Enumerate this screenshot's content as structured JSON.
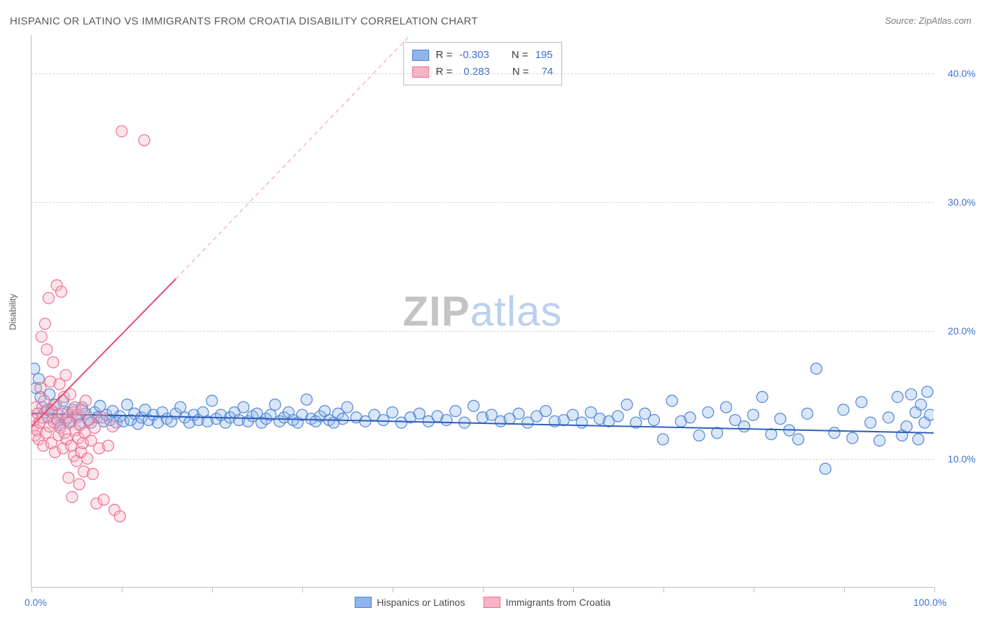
{
  "title": "HISPANIC OR LATINO VS IMMIGRANTS FROM CROATIA DISABILITY CORRELATION CHART",
  "source": "Source: ZipAtlas.com",
  "watermark": {
    "zip": "ZIP",
    "atlas": "atlas"
  },
  "y_axis_title": "Disability",
  "chart": {
    "type": "scatter",
    "xlim": [
      0,
      100
    ],
    "ylim": [
      0,
      43
    ],
    "x_ticks": [
      0,
      10,
      20,
      30,
      40,
      50,
      60,
      70,
      80,
      90,
      100
    ],
    "x_tick_labels": {
      "0": "0.0%",
      "100": "100.0%"
    },
    "y_gridlines": [
      10,
      20,
      30,
      40
    ],
    "y_tick_labels": {
      "10": "10.0%",
      "20": "20.0%",
      "30": "30.0%",
      "40": "40.0%"
    },
    "background_color": "#ffffff",
    "grid_color": "#d4d4d4",
    "axis_color": "#bcbcbc",
    "tick_label_color": "#3b6fd6",
    "marker_radius": 8,
    "marker_stroke_opacity": 0.9,
    "marker_fill_opacity": 0.35,
    "series": [
      {
        "name": "Hispanics or Latinos",
        "color_fill": "#8fb6ec",
        "color_stroke": "#4a7fd6",
        "r_label": "R =",
        "r_value": "-0.303",
        "n_label": "N =",
        "n_value": "195",
        "trend": {
          "x1": 0,
          "y1": 13.5,
          "x2": 100,
          "y2": 12.0,
          "color": "#2a5db8",
          "width": 2
        },
        "points": [
          [
            0.3,
            17.0
          ],
          [
            0.5,
            15.5
          ],
          [
            0.8,
            16.2
          ],
          [
            1.0,
            14.8
          ],
          [
            1.2,
            14.0
          ],
          [
            1.5,
            13.6
          ],
          [
            1.8,
            13.2
          ],
          [
            2.0,
            15.0
          ],
          [
            2.2,
            13.8
          ],
          [
            2.5,
            14.2
          ],
          [
            2.8,
            12.8
          ],
          [
            3.0,
            13.4
          ],
          [
            3.2,
            12.6
          ],
          [
            3.5,
            14.5
          ],
          [
            3.8,
            13.0
          ],
          [
            4.0,
            13.6
          ],
          [
            4.3,
            12.9
          ],
          [
            4.6,
            13.8
          ],
          [
            5.0,
            13.2
          ],
          [
            5.3,
            12.7
          ],
          [
            5.6,
            14.0
          ],
          [
            6.0,
            13.5
          ],
          [
            6.3,
            13.0
          ],
          [
            6.6,
            12.8
          ],
          [
            7.0,
            13.6
          ],
          [
            7.3,
            13.2
          ],
          [
            7.6,
            14.1
          ],
          [
            8.0,
            12.9
          ],
          [
            8.3,
            13.4
          ],
          [
            8.7,
            13.0
          ],
          [
            9.0,
            13.7
          ],
          [
            9.4,
            12.8
          ],
          [
            9.8,
            13.3
          ],
          [
            10.2,
            12.9
          ],
          [
            10.6,
            14.2
          ],
          [
            11.0,
            13.0
          ],
          [
            11.4,
            13.5
          ],
          [
            11.8,
            12.7
          ],
          [
            12.2,
            13.2
          ],
          [
            12.6,
            13.8
          ],
          [
            13.0,
            13.0
          ],
          [
            13.5,
            13.4
          ],
          [
            14.0,
            12.8
          ],
          [
            14.5,
            13.6
          ],
          [
            15.0,
            13.1
          ],
          [
            15.5,
            12.9
          ],
          [
            16.0,
            13.5
          ],
          [
            16.5,
            14.0
          ],
          [
            17.0,
            13.2
          ],
          [
            17.5,
            12.8
          ],
          [
            18.0,
            13.4
          ],
          [
            18.5,
            13.0
          ],
          [
            19.0,
            13.6
          ],
          [
            19.5,
            12.9
          ],
          [
            20.0,
            14.5
          ],
          [
            20.5,
            13.1
          ],
          [
            21.0,
            13.4
          ],
          [
            21.5,
            12.8
          ],
          [
            22.0,
            13.2
          ],
          [
            22.5,
            13.6
          ],
          [
            23.0,
            13.0
          ],
          [
            23.5,
            14.0
          ],
          [
            24.0,
            12.9
          ],
          [
            24.5,
            13.3
          ],
          [
            25.0,
            13.5
          ],
          [
            25.5,
            12.8
          ],
          [
            26.0,
            13.1
          ],
          [
            26.5,
            13.4
          ],
          [
            27.0,
            14.2
          ],
          [
            27.5,
            12.9
          ],
          [
            28.0,
            13.2
          ],
          [
            28.5,
            13.6
          ],
          [
            29.0,
            13.0
          ],
          [
            29.5,
            12.8
          ],
          [
            30.0,
            13.4
          ],
          [
            30.5,
            14.6
          ],
          [
            31.0,
            13.1
          ],
          [
            31.5,
            12.9
          ],
          [
            32.0,
            13.3
          ],
          [
            32.5,
            13.7
          ],
          [
            33.0,
            13.0
          ],
          [
            33.5,
            12.8
          ],
          [
            34.0,
            13.5
          ],
          [
            34.5,
            13.1
          ],
          [
            35.0,
            14.0
          ],
          [
            36.0,
            13.2
          ],
          [
            37.0,
            12.9
          ],
          [
            38.0,
            13.4
          ],
          [
            39.0,
            13.0
          ],
          [
            40.0,
            13.6
          ],
          [
            41.0,
            12.8
          ],
          [
            42.0,
            13.2
          ],
          [
            43.0,
            13.5
          ],
          [
            44.0,
            12.9
          ],
          [
            45.0,
            13.3
          ],
          [
            46.0,
            13.0
          ],
          [
            47.0,
            13.7
          ],
          [
            48.0,
            12.8
          ],
          [
            49.0,
            14.1
          ],
          [
            50.0,
            13.2
          ],
          [
            51.0,
            13.4
          ],
          [
            52.0,
            12.9
          ],
          [
            53.0,
            13.1
          ],
          [
            54.0,
            13.5
          ],
          [
            55.0,
            12.8
          ],
          [
            56.0,
            13.3
          ],
          [
            57.0,
            13.7
          ],
          [
            58.0,
            12.9
          ],
          [
            59.0,
            13.0
          ],
          [
            60.0,
            13.4
          ],
          [
            61.0,
            12.8
          ],
          [
            62.0,
            13.6
          ],
          [
            63.0,
            13.1
          ],
          [
            64.0,
            12.9
          ],
          [
            65.0,
            13.3
          ],
          [
            66.0,
            14.2
          ],
          [
            67.0,
            12.8
          ],
          [
            68.0,
            13.5
          ],
          [
            69.0,
            13.0
          ],
          [
            70.0,
            11.5
          ],
          [
            71.0,
            14.5
          ],
          [
            72.0,
            12.9
          ],
          [
            73.0,
            13.2
          ],
          [
            74.0,
            11.8
          ],
          [
            75.0,
            13.6
          ],
          [
            76.0,
            12.0
          ],
          [
            77.0,
            14.0
          ],
          [
            78.0,
            13.0
          ],
          [
            79.0,
            12.5
          ],
          [
            80.0,
            13.4
          ],
          [
            81.0,
            14.8
          ],
          [
            82.0,
            11.9
          ],
          [
            83.0,
            13.1
          ],
          [
            84.0,
            12.2
          ],
          [
            85.0,
            11.5
          ],
          [
            86.0,
            13.5
          ],
          [
            87.0,
            17.0
          ],
          [
            88.0,
            9.2
          ],
          [
            89.0,
            12.0
          ],
          [
            90.0,
            13.8
          ],
          [
            91.0,
            11.6
          ],
          [
            92.0,
            14.4
          ],
          [
            93.0,
            12.8
          ],
          [
            94.0,
            11.4
          ],
          [
            95.0,
            13.2
          ],
          [
            96.0,
            14.8
          ],
          [
            96.5,
            11.8
          ],
          [
            97.0,
            12.5
          ],
          [
            97.5,
            15.0
          ],
          [
            98.0,
            13.6
          ],
          [
            98.3,
            11.5
          ],
          [
            98.6,
            14.2
          ],
          [
            99.0,
            12.8
          ],
          [
            99.3,
            15.2
          ],
          [
            99.6,
            13.4
          ]
        ]
      },
      {
        "name": "Immigrants from Croatia",
        "color_fill": "#f6b4c4",
        "color_stroke": "#ea6a8f",
        "r_label": "R =",
        "r_value": "0.283",
        "n_label": "N =",
        "n_value": "74",
        "trend_solid": {
          "x1": 0,
          "y1": 12.5,
          "x2": 16,
          "y2": 24.0,
          "color": "#ea4a75",
          "width": 2
        },
        "trend_dashed": {
          "x1": 16,
          "y1": 24.0,
          "x2": 42,
          "y2": 43.0,
          "color": "#f6b4c4",
          "width": 1.5,
          "dash": "6,5"
        },
        "points": [
          [
            0.2,
            12.5
          ],
          [
            0.3,
            13.0
          ],
          [
            0.4,
            11.8
          ],
          [
            0.5,
            14.0
          ],
          [
            0.6,
            12.2
          ],
          [
            0.7,
            13.5
          ],
          [
            0.8,
            11.5
          ],
          [
            0.9,
            12.8
          ],
          [
            1.0,
            15.5
          ],
          [
            1.1,
            19.5
          ],
          [
            1.2,
            13.2
          ],
          [
            1.3,
            11.0
          ],
          [
            1.4,
            14.5
          ],
          [
            1.5,
            20.5
          ],
          [
            1.6,
            12.0
          ],
          [
            1.7,
            18.5
          ],
          [
            1.8,
            13.8
          ],
          [
            1.9,
            22.5
          ],
          [
            2.0,
            12.5
          ],
          [
            2.1,
            16.0
          ],
          [
            2.2,
            11.2
          ],
          [
            2.3,
            13.6
          ],
          [
            2.4,
            17.5
          ],
          [
            2.5,
            12.8
          ],
          [
            2.6,
            10.5
          ],
          [
            2.7,
            14.2
          ],
          [
            2.8,
            23.5
          ],
          [
            2.9,
            13.0
          ],
          [
            3.0,
            11.8
          ],
          [
            3.1,
            15.8
          ],
          [
            3.2,
            12.4
          ],
          [
            3.3,
            23.0
          ],
          [
            3.4,
            13.5
          ],
          [
            3.5,
            10.8
          ],
          [
            3.6,
            14.8
          ],
          [
            3.7,
            12.0
          ],
          [
            3.8,
            16.5
          ],
          [
            3.9,
            11.5
          ],
          [
            4.0,
            13.2
          ],
          [
            4.1,
            8.5
          ],
          [
            4.2,
            12.8
          ],
          [
            4.3,
            15.0
          ],
          [
            4.4,
            11.0
          ],
          [
            4.5,
            7.0
          ],
          [
            4.6,
            13.6
          ],
          [
            4.7,
            10.2
          ],
          [
            4.8,
            14.0
          ],
          [
            4.9,
            12.2
          ],
          [
            5.0,
            9.8
          ],
          [
            5.1,
            13.4
          ],
          [
            5.2,
            11.6
          ],
          [
            5.3,
            8.0
          ],
          [
            5.4,
            12.6
          ],
          [
            5.5,
            10.5
          ],
          [
            5.6,
            13.8
          ],
          [
            5.7,
            11.2
          ],
          [
            5.8,
            9.0
          ],
          [
            5.9,
            12.0
          ],
          [
            6.0,
            14.5
          ],
          [
            6.2,
            10.0
          ],
          [
            6.4,
            13.0
          ],
          [
            6.6,
            11.4
          ],
          [
            6.8,
            8.8
          ],
          [
            7.0,
            12.4
          ],
          [
            7.2,
            6.5
          ],
          [
            7.5,
            10.8
          ],
          [
            7.8,
            13.2
          ],
          [
            8.0,
            6.8
          ],
          [
            8.5,
            11.0
          ],
          [
            9.0,
            12.5
          ],
          [
            9.2,
            6.0
          ],
          [
            9.8,
            5.5
          ],
          [
            10.0,
            35.5
          ],
          [
            12.5,
            34.8
          ]
        ]
      }
    ]
  },
  "bottom_legend": [
    {
      "label": "Hispanics or Latinos",
      "fill": "#8fb6ec",
      "stroke": "#4a7fd6"
    },
    {
      "label": "Immigrants from Croatia",
      "fill": "#f6b4c4",
      "stroke": "#ea6a8f"
    }
  ]
}
